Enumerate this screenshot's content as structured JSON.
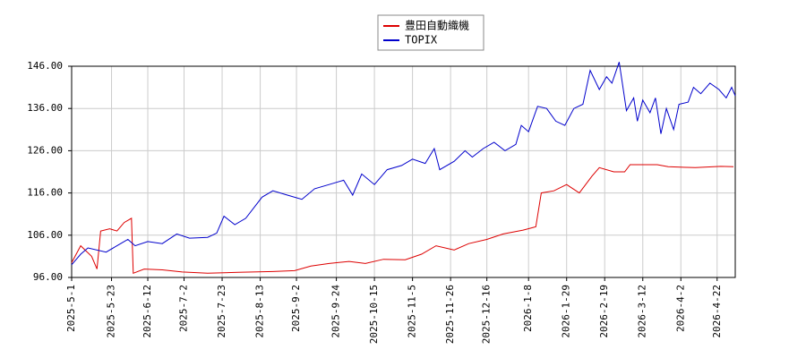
{
  "chart_data": {
    "type": "line",
    "legend": "top",
    "grid": true,
    "xlim": [
      "2025-5-1",
      "2026-5-2"
    ],
    "xticks": [
      "2025-5-1",
      "2025-5-23",
      "2025-6-12",
      "2025-7-2",
      "2025-7-23",
      "2025-8-13",
      "2025-9-2",
      "2025-9-24",
      "2025-10-15",
      "2025-11-5",
      "2025-11-26",
      "2025-12-16",
      "2026-1-8",
      "2026-1-29",
      "2026-2-19",
      "2026-3-12",
      "2026-4-2",
      "2026-4-22"
    ],
    "ylim": [
      96,
      146
    ],
    "yticks": [
      {
        "value": 96,
        "label": "96.00"
      },
      {
        "value": 106,
        "label": "106.00"
      },
      {
        "value": 116,
        "label": "116.00"
      },
      {
        "value": 126,
        "label": "126.00"
      },
      {
        "value": 136,
        "label": "136.00"
      },
      {
        "value": 146,
        "label": "146.00"
      }
    ],
    "series": [
      {
        "name": "豊田自動織機",
        "color": "#dd0000",
        "x": [
          "2025-5-1",
          "2025-5-6",
          "2025-5-12",
          "2025-5-15",
          "2025-5-17",
          "2025-5-22",
          "2025-5-26",
          "2025-5-30",
          "2025-6-3",
          "2025-6-4",
          "2025-6-10",
          "2025-6-20",
          "2025-7-1",
          "2025-7-15",
          "2025-8-1",
          "2025-8-20",
          "2025-9-1",
          "2025-9-10",
          "2025-9-20",
          "2025-10-1",
          "2025-10-10",
          "2025-10-20",
          "2025-11-1",
          "2025-11-10",
          "2025-11-18",
          "2025-11-28",
          "2025-12-6",
          "2025-12-16",
          "2025-12-25",
          "2026-1-5",
          "2026-1-12",
          "2026-1-15",
          "2026-1-22",
          "2026-1-29",
          "2026-2-5",
          "2026-2-12",
          "2026-2-16",
          "2026-2-24",
          "2026-3-2",
          "2026-3-5",
          "2026-3-20",
          "2026-3-26",
          "2026-4-10",
          "2026-4-24",
          "2026-5-1"
        ],
        "values": [
          99.5,
          103.5,
          101,
          98,
          107,
          107.5,
          107,
          109,
          110,
          97,
          98,
          97.8,
          97.3,
          97,
          97.2,
          97.4,
          97.6,
          98.7,
          99.3,
          99.8,
          99.3,
          100.3,
          100.2,
          101.5,
          103.5,
          102.5,
          104,
          105,
          106.3,
          107.2,
          108,
          116,
          116.5,
          118,
          116,
          120,
          122,
          121,
          121,
          122.7,
          122.7,
          122.2,
          122,
          122.3,
          122.2
        ]
      },
      {
        "name": "TOPIX",
        "color": "#0000cc",
        "x": [
          "2025-5-1",
          "2025-5-6",
          "2025-5-10",
          "2025-5-20",
          "2025-5-28",
          "2025-6-1",
          "2025-6-5",
          "2025-6-12",
          "2025-6-20",
          "2025-6-28",
          "2025-7-5",
          "2025-7-15",
          "2025-7-20",
          "2025-7-24",
          "2025-7-30",
          "2025-8-5",
          "2025-8-14",
          "2025-8-20",
          "2025-8-28",
          "2025-9-5",
          "2025-9-12",
          "2025-9-20",
          "2025-9-28",
          "2025-10-3",
          "2025-10-8",
          "2025-10-15",
          "2025-10-22",
          "2025-10-30",
          "2025-11-5",
          "2025-11-12",
          "2025-11-17",
          "2025-11-20",
          "2025-11-28",
          "2025-12-4",
          "2025-12-8",
          "2025-12-14",
          "2025-12-20",
          "2025-12-26",
          "2026-1-1",
          "2026-1-4",
          "2026-1-8",
          "2026-1-13",
          "2026-1-18",
          "2026-1-23",
          "2026-1-28",
          "2026-2-2",
          "2026-2-7",
          "2026-2-11",
          "2026-2-16",
          "2026-2-20",
          "2026-2-23",
          "2026-2-27",
          "2026-3-3",
          "2026-3-7",
          "2026-3-9",
          "2026-3-12",
          "2026-3-16",
          "2026-3-19",
          "2026-3-22",
          "2026-3-25",
          "2026-3-29",
          "2026-4-1",
          "2026-4-6",
          "2026-4-9",
          "2026-4-13",
          "2026-4-18",
          "2026-4-23",
          "2026-4-27",
          "2026-4-30",
          "2026-5-2"
        ],
        "values": [
          99,
          101.5,
          103,
          102,
          104,
          105,
          103.5,
          104.5,
          104,
          106.3,
          105.3,
          105.5,
          106.5,
          110.5,
          108.5,
          110,
          115,
          116.5,
          115.5,
          114.5,
          117,
          118,
          119,
          115.5,
          120.5,
          118,
          121.5,
          122.5,
          124,
          123,
          126.5,
          121.5,
          123.5,
          126,
          124.5,
          126.5,
          128,
          126,
          127.5,
          132,
          130.5,
          136.5,
          136,
          133,
          132,
          136,
          137,
          145,
          140.5,
          143.5,
          142,
          147,
          135.5,
          138.5,
          133,
          138,
          135,
          138.5,
          130,
          136,
          131,
          137,
          137.5,
          141,
          139.5,
          142,
          140.5,
          138.5,
          141,
          139
        ]
      }
    ]
  }
}
